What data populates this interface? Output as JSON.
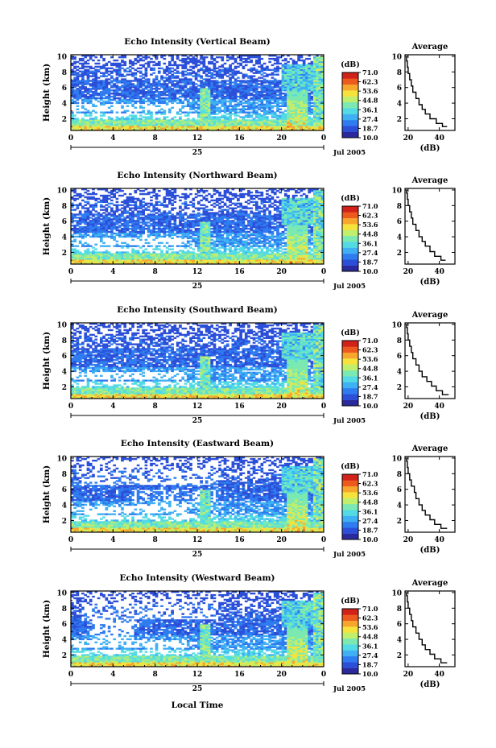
{
  "figure": {
    "xlabel_bottom": "Local Time",
    "colorbar_unit": "(dB)",
    "colorbar_ticks": [
      "71.0",
      "62.3",
      "53.6",
      "44.8",
      "36.1",
      "27.4",
      "18.7",
      "10.0"
    ],
    "palette": [
      "#2b2a9c",
      "#2c4fd8",
      "#2f7cf0",
      "#3fb0f3",
      "#52dbe4",
      "#7be9b1",
      "#c0ee6d",
      "#f5e33c",
      "#f7a62d",
      "#ee5a1d",
      "#d1221a"
    ],
    "profile_title": "Average",
    "profile_xlabel": "(dB)",
    "day_label": "25",
    "month_label": "Jul 2005"
  },
  "chart_data": [
    {
      "type": "heatmap",
      "title": "Echo Intensity (Vertical Beam)",
      "ylabel": "Height (km)",
      "x_ticks": [
        "0",
        "4",
        "8",
        "12",
        "16",
        "20",
        "0"
      ],
      "y_ticks": [
        "2",
        "4",
        "6",
        "8",
        "10"
      ],
      "xlim": [
        0,
        24
      ],
      "ylim": [
        0.5,
        10.2
      ],
      "colorbar": {
        "min": 10.0,
        "max": 71.0
      },
      "profile": {
        "type": "line",
        "title": "Average",
        "xlabel": "(dB)",
        "x_ticks": [
          "20",
          "40"
        ],
        "y_ticks": [
          "2",
          "4",
          "6",
          "8",
          "10"
        ],
        "xlim": [
          18,
          50
        ],
        "ylim": [
          0.5,
          10.2
        ],
        "points": [
          [
            45,
            1.0
          ],
          [
            42,
            1.4
          ],
          [
            38,
            2.0
          ],
          [
            34,
            2.6
          ],
          [
            31,
            3.2
          ],
          [
            29,
            3.8
          ],
          [
            27,
            4.6
          ],
          [
            25,
            5.4
          ],
          [
            23,
            6.2
          ],
          [
            22,
            7.0
          ],
          [
            21,
            7.8
          ],
          [
            20,
            8.6
          ],
          [
            19.5,
            9.4
          ],
          [
            19,
            10.0
          ]
        ]
      }
    },
    {
      "type": "heatmap",
      "title": "Echo Intensity (Northward Beam)",
      "ylabel": "Height (km)",
      "x_ticks": [
        "0",
        "4",
        "8",
        "12",
        "16",
        "20",
        "0"
      ],
      "y_ticks": [
        "2",
        "4",
        "6",
        "8",
        "10"
      ],
      "xlim": [
        0,
        24
      ],
      "ylim": [
        0.5,
        10.2
      ],
      "colorbar": {
        "min": 10.0,
        "max": 71.0
      },
      "profile": {
        "type": "line",
        "title": "Average",
        "xlabel": "(dB)",
        "x_ticks": [
          "20",
          "40"
        ],
        "y_ticks": [
          "2",
          "4",
          "6",
          "8",
          "10"
        ],
        "xlim": [
          18,
          50
        ],
        "ylim": [
          0.5,
          10.2
        ],
        "points": [
          [
            44,
            1.0
          ],
          [
            41,
            1.5
          ],
          [
            37,
            2.1
          ],
          [
            34,
            2.8
          ],
          [
            31,
            3.4
          ],
          [
            29,
            4.0
          ],
          [
            27,
            4.8
          ],
          [
            25,
            5.6
          ],
          [
            23,
            6.4
          ],
          [
            22,
            7.2
          ],
          [
            21,
            8.0
          ],
          [
            20,
            8.8
          ],
          [
            19.5,
            9.6
          ],
          [
            19,
            10.0
          ]
        ]
      }
    },
    {
      "type": "heatmap",
      "title": "Echo Intensity (Southward Beam)",
      "ylabel": "Height (km)",
      "x_ticks": [
        "0",
        "4",
        "8",
        "12",
        "16",
        "20",
        "0"
      ],
      "y_ticks": [
        "2",
        "4",
        "6",
        "8",
        "10"
      ],
      "xlim": [
        0,
        24
      ],
      "ylim": [
        0.5,
        10.2
      ],
      "colorbar": {
        "min": 10.0,
        "max": 71.0
      },
      "profile": {
        "type": "line",
        "title": "Average",
        "xlabel": "(dB)",
        "x_ticks": [
          "20",
          "40"
        ],
        "y_ticks": [
          "2",
          "4",
          "6",
          "8",
          "10"
        ],
        "xlim": [
          18,
          50
        ],
        "ylim": [
          0.5,
          10.2
        ],
        "points": [
          [
            46,
            1.0
          ],
          [
            42,
            1.5
          ],
          [
            38,
            2.1
          ],
          [
            35,
            2.7
          ],
          [
            32,
            3.3
          ],
          [
            29,
            4.0
          ],
          [
            27,
            4.8
          ],
          [
            25,
            5.6
          ],
          [
            23,
            6.4
          ],
          [
            22,
            7.2
          ],
          [
            21,
            8.0
          ],
          [
            20,
            8.8
          ],
          [
            19.5,
            9.6
          ],
          [
            19,
            10.0
          ]
        ]
      }
    },
    {
      "type": "heatmap",
      "title": "Echo Intensity (Eastward Beam)",
      "ylabel": "Height (km)",
      "x_ticks": [
        "0",
        "4",
        "8",
        "12",
        "16",
        "20",
        "0"
      ],
      "y_ticks": [
        "2",
        "4",
        "6",
        "8",
        "10"
      ],
      "xlim": [
        0,
        24
      ],
      "ylim": [
        0.5,
        10.2
      ],
      "colorbar": {
        "min": 10.0,
        "max": 71.0
      },
      "profile": {
        "type": "line",
        "title": "Average",
        "xlabel": "(dB)",
        "x_ticks": [
          "20",
          "40"
        ],
        "y_ticks": [
          "2",
          "4",
          "6",
          "8",
          "10"
        ],
        "xlim": [
          18,
          50
        ],
        "ylim": [
          0.5,
          10.2
        ],
        "points": [
          [
            45,
            1.0
          ],
          [
            41,
            1.5
          ],
          [
            37,
            2.1
          ],
          [
            34,
            2.7
          ],
          [
            31,
            3.3
          ],
          [
            29,
            4.0
          ],
          [
            27,
            4.8
          ],
          [
            25,
            5.6
          ],
          [
            24,
            6.4
          ],
          [
            22,
            7.2
          ],
          [
            21,
            8.0
          ],
          [
            20,
            8.8
          ],
          [
            19.5,
            9.6
          ],
          [
            19,
            10.0
          ]
        ]
      }
    },
    {
      "type": "heatmap",
      "title": "Echo Intensity (Westward Beam)",
      "ylabel": "Height (km)",
      "x_ticks": [
        "0",
        "4",
        "8",
        "12",
        "16",
        "20",
        "0"
      ],
      "y_ticks": [
        "2",
        "4",
        "6",
        "8",
        "10"
      ],
      "xlim": [
        0,
        24
      ],
      "ylim": [
        0.5,
        10.2
      ],
      "colorbar": {
        "min": 10.0,
        "max": 71.0
      },
      "profile": {
        "type": "line",
        "title": "Average",
        "xlabel": "(dB)",
        "x_ticks": [
          "20",
          "40"
        ],
        "y_ticks": [
          "2",
          "4",
          "6",
          "8",
          "10"
        ],
        "xlim": [
          18,
          50
        ],
        "ylim": [
          0.5,
          10.2
        ],
        "points": [
          [
            45,
            1.0
          ],
          [
            41,
            1.5
          ],
          [
            37,
            2.1
          ],
          [
            34,
            2.7
          ],
          [
            31,
            3.3
          ],
          [
            29,
            4.0
          ],
          [
            27,
            4.8
          ],
          [
            25,
            5.6
          ],
          [
            23,
            6.4
          ],
          [
            22,
            7.2
          ],
          [
            21,
            8.0
          ],
          [
            20,
            8.8
          ],
          [
            19.5,
            9.6
          ],
          [
            19,
            10.0
          ]
        ]
      }
    }
  ]
}
